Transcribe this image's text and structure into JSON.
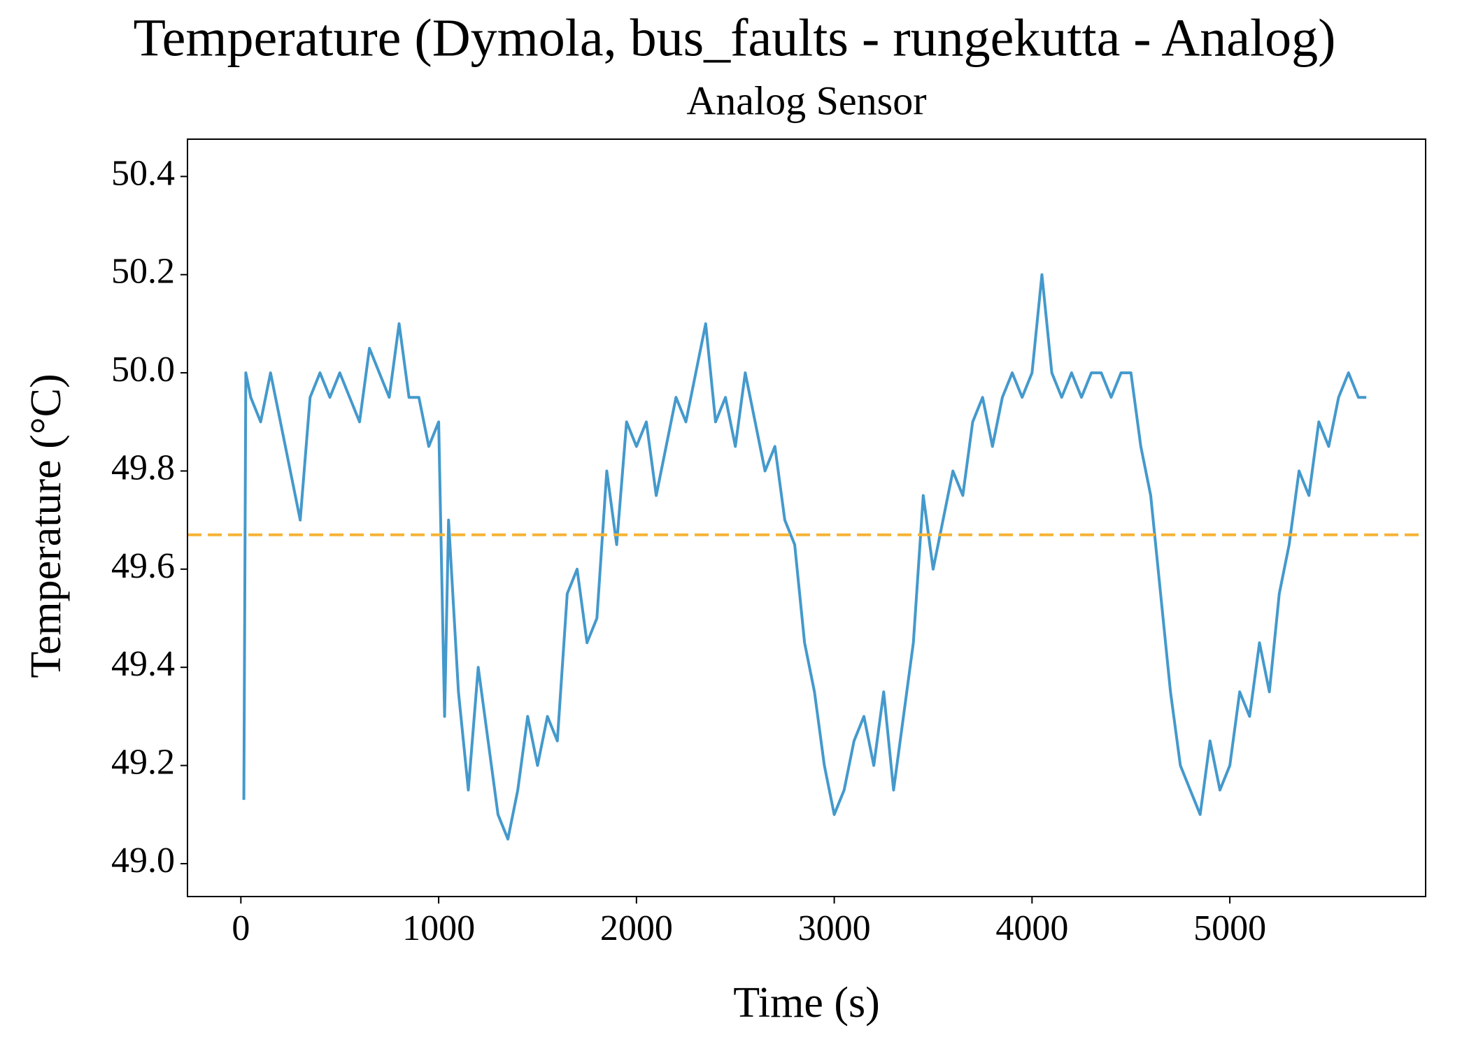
{
  "chart_data": {
    "type": "line",
    "title": "Temperature (Dymola, bus_faults - rungekutta - Analog)",
    "subtitle": "Analog Sensor",
    "x_label": "Time (s)",
    "y_label": "Temperature (°C)",
    "x": [
      15,
      25,
      50,
      100,
      150,
      200,
      250,
      300,
      350,
      400,
      450,
      500,
      550,
      600,
      650,
      700,
      750,
      800,
      850,
      900,
      950,
      1000,
      1030,
      1050,
      1100,
      1150,
      1200,
      1250,
      1300,
      1350,
      1400,
      1450,
      1500,
      1550,
      1600,
      1650,
      1700,
      1750,
      1800,
      1850,
      1900,
      1950,
      2000,
      2050,
      2100,
      2150,
      2200,
      2250,
      2300,
      2350,
      2400,
      2450,
      2500,
      2550,
      2600,
      2650,
      2700,
      2750,
      2800,
      2850,
      2900,
      2950,
      3000,
      3050,
      3100,
      3150,
      3200,
      3250,
      3300,
      3350,
      3400,
      3450,
      3500,
      3550,
      3600,
      3650,
      3700,
      3750,
      3800,
      3850,
      3900,
      3950,
      4000,
      4050,
      4100,
      4150,
      4200,
      4250,
      4300,
      4350,
      4400,
      4450,
      4500,
      4550,
      4600,
      4650,
      4700,
      4750,
      4800,
      4850,
      4900,
      4950,
      5000,
      5050,
      5100,
      5150,
      5200,
      5250,
      5300,
      5350,
      5400,
      5450,
      5500,
      5550,
      5600,
      5650,
      5690
    ],
    "series": [
      {
        "name": "Analog Sensor",
        "color": "#4499cc",
        "values": [
          49.13,
          50.0,
          49.95,
          49.9,
          50.0,
          49.9,
          49.8,
          49.7,
          49.95,
          50.0,
          49.95,
          50.0,
          49.95,
          49.9,
          50.05,
          50.0,
          49.95,
          50.1,
          49.95,
          49.95,
          49.85,
          49.9,
          49.3,
          49.7,
          49.35,
          49.15,
          49.4,
          49.25,
          49.1,
          49.05,
          49.15,
          49.3,
          49.2,
          49.3,
          49.25,
          49.55,
          49.6,
          49.45,
          49.5,
          49.8,
          49.65,
          49.9,
          49.85,
          49.9,
          49.75,
          49.85,
          49.95,
          49.9,
          50.0,
          50.1,
          49.9,
          49.95,
          49.85,
          50.0,
          49.9,
          49.8,
          49.85,
          49.7,
          49.65,
          49.45,
          49.35,
          49.2,
          49.1,
          49.15,
          49.25,
          49.3,
          49.2,
          49.35,
          49.15,
          49.3,
          49.45,
          49.75,
          49.6,
          49.7,
          49.8,
          49.75,
          49.9,
          49.95,
          49.85,
          49.95,
          50.0,
          49.95,
          50.0,
          50.2,
          50.0,
          49.95,
          50.0,
          49.95,
          50.0,
          50.0,
          49.95,
          50.0,
          50.0,
          49.85,
          49.75,
          49.55,
          49.35,
          49.2,
          49.15,
          49.1,
          49.25,
          49.15,
          49.2,
          49.35,
          49.3,
          49.45,
          49.35,
          49.55,
          49.65,
          49.8,
          49.75,
          49.9,
          49.85,
          49.95,
          50.0,
          49.95,
          49.95
        ]
      }
    ],
    "hline": {
      "value": 49.67,
      "color": "#f5b335"
    },
    "xlim": [
      -270,
      5990
    ],
    "ylim": [
      48.933,
      50.476
    ],
    "xticks": [
      0,
      1000,
      2000,
      3000,
      4000,
      5000
    ],
    "yticks": [
      {
        "value": 49.0,
        "label": "49.0"
      },
      49.2,
      49.4,
      49.6,
      49.8,
      {
        "value": 50.0,
        "label": "50.0"
      },
      50.2,
      50.4
    ]
  }
}
